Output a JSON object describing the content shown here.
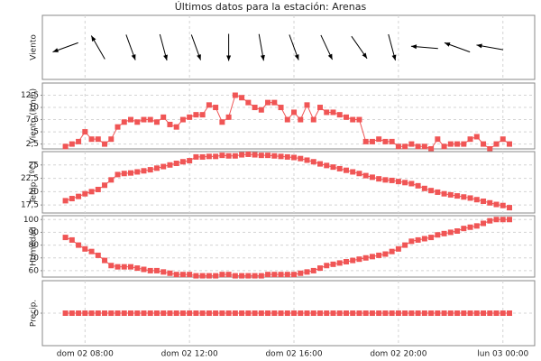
{
  "chart_data": {
    "type": "line",
    "title": "Últimos datos para la estación: Arenas",
    "x": [
      "dom 02 07:15",
      "dom 02 07:30",
      "dom 02 07:45",
      "dom 02 08:00",
      "dom 02 08:15",
      "dom 02 08:30",
      "dom 02 08:45",
      "dom 02 09:00",
      "dom 02 09:15",
      "dom 02 09:30",
      "dom 02 09:45",
      "dom 02 10:00",
      "dom 02 10:15",
      "dom 02 10:30",
      "dom 02 10:45",
      "dom 02 11:00",
      "dom 02 11:15",
      "dom 02 11:30",
      "dom 02 11:45",
      "dom 02 12:00",
      "dom 02 12:15",
      "dom 02 12:30",
      "dom 02 12:45",
      "dom 02 13:00",
      "dom 02 13:15",
      "dom 02 13:30",
      "dom 02 13:45",
      "dom 02 14:00",
      "dom 02 14:15",
      "dom 02 14:30",
      "dom 02 14:45",
      "dom 02 15:00",
      "dom 02 15:15",
      "dom 02 15:30",
      "dom 02 15:45",
      "dom 02 16:00",
      "dom 02 16:15",
      "dom 02 16:30",
      "dom 02 16:45",
      "dom 02 17:00",
      "dom 02 17:15",
      "dom 02 17:30",
      "dom 02 17:45",
      "dom 02 18:00",
      "dom 02 18:15",
      "dom 02 18:30",
      "dom 02 18:45",
      "dom 02 19:00",
      "dom 02 19:15",
      "dom 02 19:30",
      "dom 02 19:45",
      "dom 02 20:00",
      "dom 02 20:15",
      "dom 02 20:30",
      "dom 02 20:45",
      "dom 02 21:00",
      "dom 02 21:15",
      "dom 02 21:30",
      "dom 02 21:45",
      "dom 02 22:00",
      "dom 02 22:15",
      "dom 02 22:30",
      "dom 02 22:45",
      "dom 02 23:00",
      "dom 02 23:15",
      "dom 02 23:30",
      "dom 02 23:45",
      "lun 03 00:00",
      "lun 03 00:15"
    ],
    "xlim": [
      "dom 02 06:22",
      "lun 03 01:13"
    ],
    "xticks": [
      "dom 02 08:00",
      "dom 02 12:00",
      "dom 02 16:00",
      "dom 02 20:00",
      "lun 03 00:00"
    ],
    "grid": true,
    "panels": [
      {
        "type": "arrow",
        "ylabel": "Viento",
        "color": "#000000",
        "x": [
          "dom 02 07:15",
          "dom 02 08:30",
          "dom 02 09:45",
          "dom 02 11:00",
          "dom 02 12:15",
          "dom 02 13:30",
          "dom 02 14:45",
          "dom 02 16:00",
          "dom 02 17:15",
          "dom 02 18:30",
          "dom 02 19:45",
          "dom 02 21:00",
          "dom 02 22:15",
          "dom 02 23:30"
        ],
        "values": [
          70,
          150,
          340,
          345,
          340,
          0,
          350,
          340,
          335,
          325,
          345,
          95,
          110,
          100
        ]
      },
      {
        "type": "line",
        "ylabel": "Viento (km/h)",
        "color": "#f05555",
        "ylim": [
          1.5,
          15
        ],
        "yticks": [
          {
            "value": 2.5,
            "label": "2,5"
          },
          5,
          {
            "value": 7.5,
            "label": "7,5"
          },
          10,
          {
            "value": 12.5,
            "label": "12,5"
          }
        ],
        "values": [
          2,
          2.5,
          3,
          5,
          3.5,
          3.5,
          2.5,
          3.5,
          6,
          7,
          7.5,
          7,
          7.5,
          7.5,
          7,
          8,
          6.5,
          6,
          7.5,
          8,
          8.5,
          8.5,
          10.5,
          10,
          7,
          8,
          12.5,
          12,
          11,
          10,
          9.5,
          11,
          11,
          10,
          7.5,
          9,
          7.5,
          10.5,
          7.5,
          10,
          9,
          9,
          8.5,
          8,
          7.5,
          7.5,
          3,
          3,
          3.5,
          3,
          3,
          2,
          2,
          2.5,
          2,
          2,
          1.5,
          3.5,
          2,
          2.5,
          2.5,
          2.5,
          3.5,
          4,
          2.5,
          1.5,
          2.5,
          3.5,
          2.5
        ]
      },
      {
        "type": "line",
        "ylabel": "Temp. (ºC)",
        "color": "#f05555",
        "ylim": [
          16,
          27.5
        ],
        "yticks": [
          {
            "value": 17.5,
            "label": "17,5"
          },
          20,
          {
            "value": 22.5,
            "label": "22,5"
          },
          25
        ],
        "values": [
          18.3,
          18.7,
          19.1,
          19.6,
          20.0,
          20.4,
          21.2,
          22.2,
          23.2,
          23.4,
          23.5,
          23.7,
          23.9,
          24.1,
          24.4,
          24.7,
          25.0,
          25.3,
          25.6,
          25.8,
          26.5,
          26.5,
          26.6,
          26.6,
          26.8,
          26.7,
          26.7,
          26.9,
          27.0,
          26.9,
          26.8,
          26.8,
          26.7,
          26.6,
          26.5,
          26.4,
          26.2,
          25.9,
          25.6,
          25.2,
          24.9,
          24.6,
          24.3,
          24.0,
          23.7,
          23.4,
          23.0,
          22.7,
          22.4,
          22.2,
          22.1,
          21.9,
          21.7,
          21.5,
          21.1,
          20.6,
          20.2,
          19.9,
          19.6,
          19.4,
          19.2,
          19.0,
          18.8,
          18.5,
          18.2,
          17.9,
          17.6,
          17.4,
          17.0
        ]
      },
      {
        "type": "line",
        "ylabel": "Humedad",
        "color": "#f05555",
        "ylim": [
          55,
          103
        ],
        "yticks": [
          60,
          70,
          80,
          90,
          100
        ],
        "values": [
          86,
          84,
          80,
          77,
          75,
          72,
          68,
          64,
          63,
          63,
          63,
          62,
          61,
          60,
          60,
          59,
          58,
          57,
          57,
          57,
          56,
          56,
          56,
          56,
          57,
          57,
          56,
          56,
          56,
          56,
          56,
          57,
          57,
          57,
          57,
          57,
          58,
          59,
          60,
          62,
          64,
          65,
          66,
          67,
          68,
          69,
          70,
          71,
          72,
          73,
          75,
          77,
          80,
          83,
          84,
          85,
          86,
          88,
          89,
          90,
          91,
          93,
          94,
          95,
          97,
          99,
          100,
          100,
          100
        ]
      },
      {
        "type": "line",
        "ylabel": "Precip.",
        "color": "#f05555",
        "ylim": [
          -1,
          1
        ],
        "yticks": [
          0
        ],
        "values": [
          0,
          0,
          0,
          0,
          0,
          0,
          0,
          0,
          0,
          0,
          0,
          0,
          0,
          0,
          0,
          0,
          0,
          0,
          0,
          0,
          0,
          0,
          0,
          0,
          0,
          0,
          0,
          0,
          0,
          0,
          0,
          0,
          0,
          0,
          0,
          0,
          0,
          0,
          0,
          0,
          0,
          0,
          0,
          0,
          0,
          0,
          0,
          0,
          0,
          0,
          0,
          0,
          0,
          0,
          0,
          0,
          0,
          0,
          0,
          0,
          0,
          0,
          0,
          0,
          0,
          0,
          0,
          0,
          0
        ]
      }
    ]
  }
}
